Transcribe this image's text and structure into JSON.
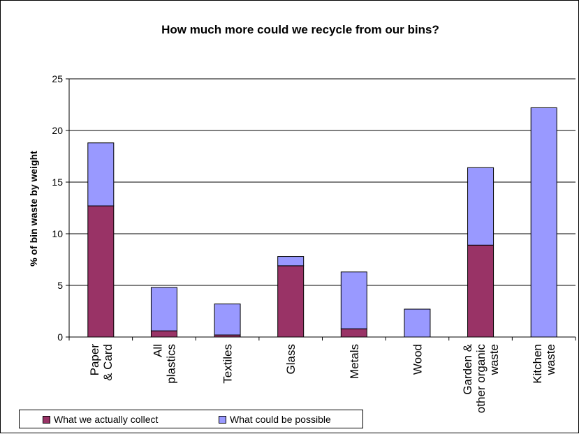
{
  "chart_data": {
    "type": "bar",
    "stacked": true,
    "title": "How much more could we recycle from our bins?",
    "xlabel": "",
    "ylabel": "% of bin waste by weight",
    "ylim": [
      0,
      25
    ],
    "yticks": [
      0,
      5,
      10,
      15,
      20,
      25
    ],
    "grid": true,
    "legend_position": "bottom-left",
    "categories": [
      [
        "Paper",
        "& Card"
      ],
      [
        "All",
        "plastics"
      ],
      [
        "Textiles"
      ],
      [
        "Glass"
      ],
      [
        "Metals"
      ],
      [
        "Wood"
      ],
      [
        "Garden &",
        "other organic",
        "waste"
      ],
      [
        "Kitchen",
        "waste"
      ]
    ],
    "series": [
      {
        "name": "What we actually collect",
        "color": "#993366",
        "values": [
          12.7,
          0.6,
          0.2,
          6.9,
          0.8,
          0.0,
          8.9,
          0.0
        ]
      },
      {
        "name": "What could be possible",
        "color": "#9999ff",
        "values": [
          6.1,
          4.2,
          3.0,
          0.9,
          5.5,
          2.7,
          7.5,
          22.2
        ]
      }
    ]
  }
}
